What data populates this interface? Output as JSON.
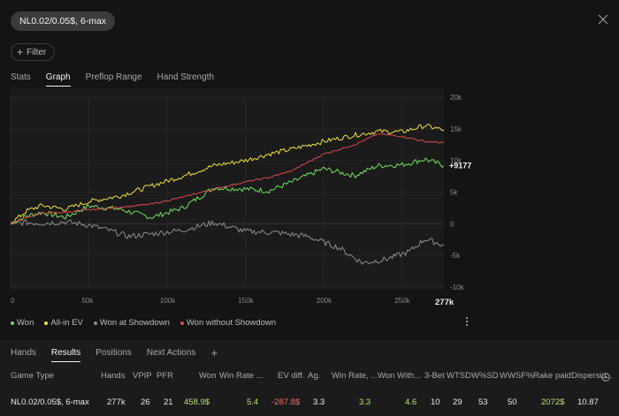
{
  "header": {
    "stake_label": "NL0.02/0.05$, 6-max",
    "close_icon": "close-icon"
  },
  "filter": {
    "label": "Filter",
    "icon": "plus-icon"
  },
  "tabs": [
    {
      "label": "Stats",
      "active": false
    },
    {
      "label": "Graph",
      "active": true
    },
    {
      "label": "Preflop Range",
      "active": false
    },
    {
      "label": "Hand Strength",
      "active": false
    }
  ],
  "chart_data": {
    "type": "line",
    "x_ticks": [
      "0",
      "50k",
      "100k",
      "150k",
      "200k",
      "250k"
    ],
    "x_end_label": "277k",
    "x_range": [
      0,
      277
    ],
    "y_ticks": [
      "20k",
      "15k",
      "10k",
      "5k",
      "0",
      "-5k",
      "-10k"
    ],
    "y_range": [
      -10000,
      20000
    ],
    "end_value_label": "+9177",
    "colors": {
      "won": "#6ee05a",
      "allin_ev": "#f2de3a",
      "showdown": "#8c8c8c",
      "no_showdown": "#e04848"
    },
    "series": [
      {
        "name": "Won",
        "key": "won",
        "x": [
          0,
          10,
          20,
          35,
          50,
          70,
          90,
          110,
          130,
          150,
          165,
          180,
          200,
          220,
          235,
          250,
          265,
          277
        ],
        "y": [
          0,
          1200,
          1800,
          1000,
          2800,
          2300,
          1000,
          2500,
          5700,
          5500,
          5200,
          6600,
          8700,
          7600,
          9200,
          9300,
          10200,
          9177
        ]
      },
      {
        "name": "All-in EV",
        "key": "allin_ev",
        "x": [
          0,
          10,
          20,
          35,
          50,
          70,
          90,
          110,
          130,
          150,
          165,
          180,
          200,
          220,
          235,
          250,
          265,
          277
        ],
        "y": [
          0,
          2000,
          2900,
          2300,
          3500,
          4400,
          6000,
          7500,
          9200,
          10000,
          11000,
          11800,
          13000,
          14000,
          14600,
          14500,
          15500,
          14800
        ]
      },
      {
        "name": "Won at Showdown",
        "key": "showdown",
        "x": [
          0,
          10,
          20,
          35,
          50,
          65,
          75,
          90,
          110,
          130,
          150,
          170,
          190,
          210,
          225,
          240,
          255,
          265,
          277
        ],
        "y": [
          0,
          200,
          100,
          300,
          -200,
          -1200,
          -2000,
          -1600,
          -1000,
          200,
          -1200,
          -1400,
          -2000,
          -3800,
          -6200,
          -5600,
          -4400,
          -2400,
          -3400
        ]
      },
      {
        "name": "Won without Showdown",
        "key": "no_showdown",
        "x": [
          0,
          10,
          20,
          35,
          50,
          70,
          90,
          110,
          130,
          150,
          165,
          180,
          200,
          220,
          235,
          250,
          265,
          277
        ],
        "y": [
          0,
          1000,
          1700,
          1800,
          2200,
          2600,
          3100,
          4200,
          5500,
          6600,
          7300,
          8400,
          11000,
          12500,
          14200,
          13800,
          13000,
          12800
        ]
      }
    ]
  },
  "legend": [
    {
      "label": "Won",
      "color": "#6ee05a"
    },
    {
      "label": "All-in EV",
      "color": "#f2de3a"
    },
    {
      "label": "Won at Showdown",
      "color": "#8c8c8c"
    },
    {
      "label": "Won without Showdown",
      "color": "#e04848"
    }
  ],
  "bottom_tabs": [
    {
      "label": "Hands",
      "active": false
    },
    {
      "label": "Results",
      "active": true
    },
    {
      "label": "Positions",
      "active": false
    },
    {
      "label": "Next Actions",
      "active": false
    }
  ],
  "add_tab_label": "+",
  "table": {
    "headers": [
      "Game Type",
      "Hands",
      "VPIP",
      "PFR",
      "Won",
      "Win Rate ...",
      "EV diff.",
      "Ag.",
      "Win Rate, ...",
      "Won With...",
      "3-Bet",
      "WTSD",
      "W%SD",
      "WWSF%",
      "Rake paid",
      "Dispersio..."
    ],
    "row": [
      "NL0.02/0.05$, 6-max",
      "277k",
      "26",
      "21",
      "458.9$",
      "5.4",
      "-287.8$",
      "3.3",
      "3.3",
      "4.6",
      "10",
      "29",
      "53",
      "50",
      "2072$",
      "10.87"
    ]
  }
}
